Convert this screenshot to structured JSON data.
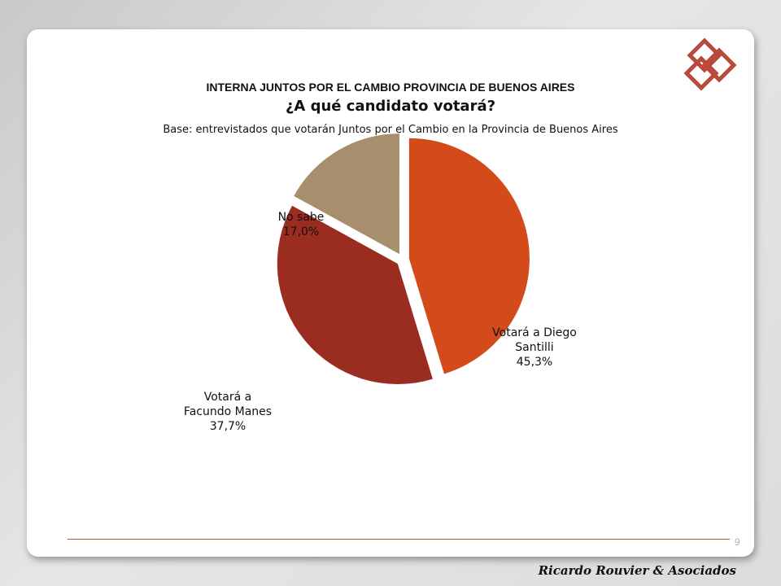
{
  "header": {
    "title": "INTERNA JUNTOS POR EL CAMBIO PROVINCIA DE BUENOS AIRES",
    "question": "¿A qué candidato votará?",
    "base": "Base: entrevistados que votarán Juntos por el Cambio en la Provincia de Buenos Aires"
  },
  "chart_data": {
    "type": "pie",
    "slices": [
      {
        "label_lines": [
          "Votará a Diego",
          "Santilli"
        ],
        "value": 45.3,
        "value_label": "45,3%",
        "color": "#d34a1b"
      },
      {
        "label_lines": [
          "Votará a",
          "Facundo Manes"
        ],
        "value": 37.7,
        "value_label": "37,7%",
        "color": "#9a2c20"
      },
      {
        "label_lines": [
          "No sabe"
        ],
        "value": 17.0,
        "value_label": "17,0%",
        "color": "#a78f6d"
      }
    ]
  },
  "footer": {
    "page_number": "9",
    "brand": "Ricardo Rouvier & Asociados"
  },
  "colors": {
    "logo": "#b84a3c",
    "footer_line": "#b84a3c"
  }
}
